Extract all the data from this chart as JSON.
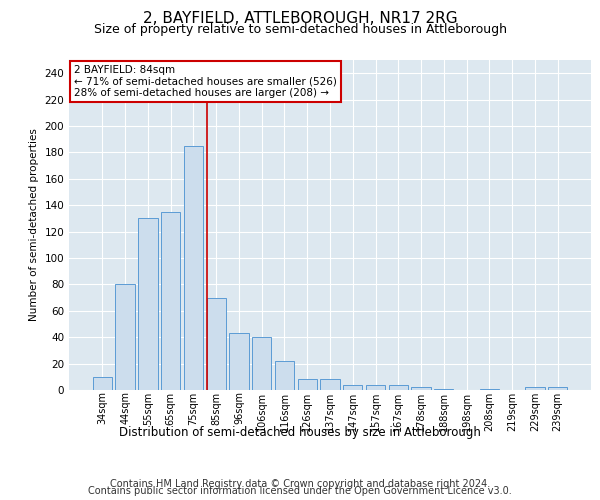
{
  "title": "2, BAYFIELD, ATTLEBOROUGH, NR17 2RG",
  "subtitle": "Size of property relative to semi-detached houses in Attleborough",
  "xlabel": "Distribution of semi-detached houses by size in Attleborough",
  "ylabel": "Number of semi-detached properties",
  "categories": [
    "34sqm",
    "44sqm",
    "55sqm",
    "65sqm",
    "75sqm",
    "85sqm",
    "96sqm",
    "106sqm",
    "116sqm",
    "126sqm",
    "137sqm",
    "147sqm",
    "157sqm",
    "167sqm",
    "178sqm",
    "188sqm",
    "198sqm",
    "208sqm",
    "219sqm",
    "229sqm",
    "239sqm"
  ],
  "values": [
    10,
    80,
    130,
    135,
    185,
    70,
    43,
    40,
    22,
    8,
    8,
    4,
    4,
    4,
    2,
    1,
    0,
    1,
    0,
    2,
    2
  ],
  "bar_color": "#ccdded",
  "bar_edge_color": "#5b9bd5",
  "highlight_index": 5,
  "highlight_line_color": "#cc0000",
  "annotation_text": "2 BAYFIELD: 84sqm\n← 71% of semi-detached houses are smaller (526)\n28% of semi-detached houses are larger (208) →",
  "annotation_box_color": "#ffffff",
  "annotation_box_edge": "#cc0000",
  "ylim": [
    0,
    250
  ],
  "yticks": [
    0,
    20,
    40,
    60,
    80,
    100,
    120,
    140,
    160,
    180,
    200,
    220,
    240
  ],
  "plot_background": "#dde8f0",
  "footer_line1": "Contains HM Land Registry data © Crown copyright and database right 2024.",
  "footer_line2": "Contains public sector information licensed under the Open Government Licence v3.0.",
  "title_fontsize": 11,
  "subtitle_fontsize": 9,
  "footer_fontsize": 7
}
